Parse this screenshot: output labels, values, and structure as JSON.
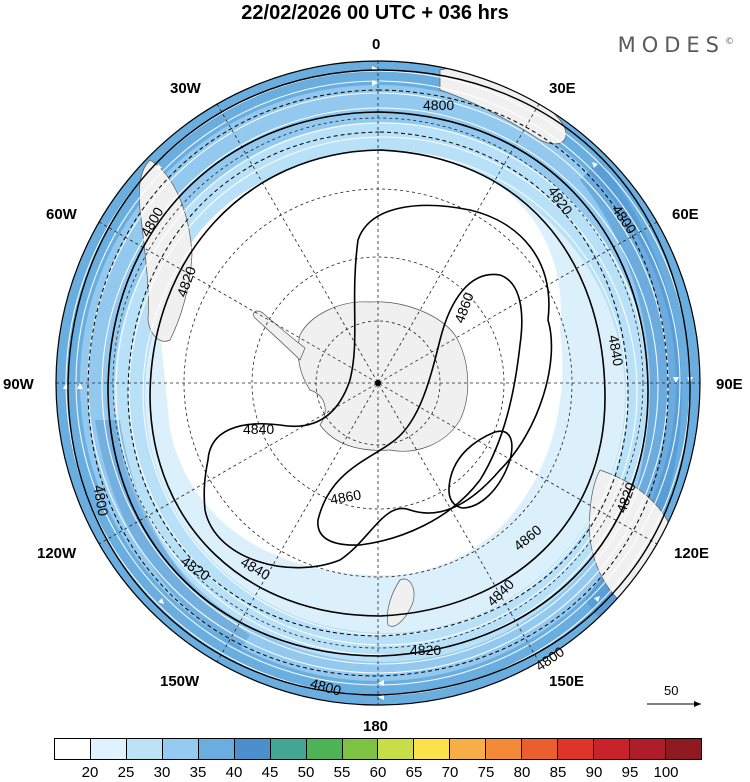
{
  "title": "22/02/2026  00 UTC  + 036 hrs",
  "brand": "MODES",
  "brand_mark": "©",
  "longitude_labels": {
    "top": "0",
    "bottom": "180",
    "left": "90W",
    "right": "90E",
    "nw30": "30W",
    "ne30": "30E",
    "nw60": "60W",
    "ne60": "60E",
    "sw120": "120W",
    "se120": "120E",
    "sw150": "150W",
    "se150": "150E"
  },
  "contour_labels": [
    "4800",
    "4800",
    "4800",
    "4800",
    "4800",
    "4800",
    "4820",
    "4820",
    "4820",
    "4820",
    "4820",
    "4840",
    "4840",
    "4840",
    "4840",
    "4860",
    "4860",
    "4860"
  ],
  "reference_vector": {
    "label": "50"
  },
  "colors": {
    "ocean_light": "#dcf0fc",
    "band1": "#b8e1f8",
    "band2": "#93c9ef",
    "band3": "#6aaee0",
    "land": "#f0f0f0"
  },
  "colorbar": {
    "colors": [
      "#ffffff",
      "#dff2fd",
      "#bde3f9",
      "#96cbf1",
      "#6aaee0",
      "#4b8fcc",
      "#43a593",
      "#4db356",
      "#7dc242",
      "#c7de47",
      "#fbe24a",
      "#f8ae47",
      "#f48a38",
      "#eb5f2e",
      "#de3429",
      "#c8222a",
      "#ae1d29",
      "#8f1a22"
    ],
    "labels": [
      "20",
      "25",
      "30",
      "35",
      "40",
      "45",
      "50",
      "55",
      "60",
      "65",
      "70",
      "75",
      "80",
      "85",
      "90",
      "95",
      "100"
    ]
  }
}
